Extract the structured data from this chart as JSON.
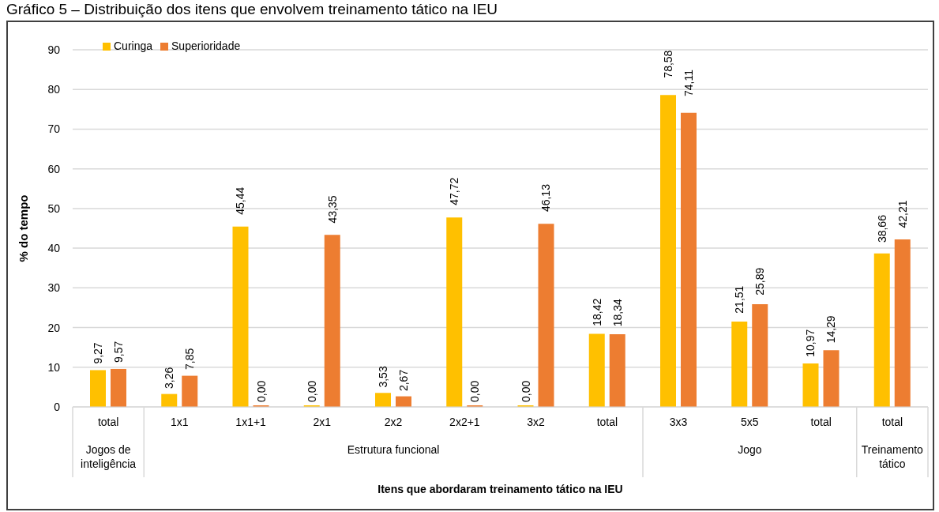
{
  "chart_data": {
    "type": "bar",
    "title": "Gráfico 5 – Distribuição dos itens que envolvem treinamento tático na IEU",
    "xlabel": "Itens que abordaram treinamento tático na IEU",
    "ylabel": "% do tempo",
    "categories": [
      "total",
      "1x1",
      "1x1+1",
      "2x1",
      "2x2",
      "2x2+1",
      "3x2",
      "total",
      "3x3",
      "5x5",
      "total",
      "total"
    ],
    "annotations": [
      "Jogos de inteligência",
      "Estrutura funcional",
      "Jogo",
      "Treinamento tático"
    ],
    "series": [
      {
        "name": "Curinga",
        "color": "#ffc000",
        "values": [
          9.27,
          3.26,
          45.44,
          0.0,
          3.53,
          47.72,
          0.0,
          18.42,
          78.58,
          21.51,
          10.97,
          38.66
        ],
        "value_labels": [
          "9,27",
          "3,26",
          "45,44",
          "0,00",
          "3,53",
          "47,72",
          "0,00",
          "18,42",
          "78,58",
          "21,51",
          "10,97",
          "38,66"
        ]
      },
      {
        "name": "Superioridade",
        "color": "#ed7d31",
        "values": [
          9.57,
          7.85,
          0.0,
          43.35,
          2.67,
          0.0,
          46.13,
          18.34,
          74.11,
          25.89,
          14.29,
          42.21
        ],
        "value_labels": [
          "9,57",
          "7,85",
          "0,00",
          "43,35",
          "2,67",
          "0,00",
          "46,13",
          "18,34",
          "74,11",
          "25,89",
          "14,29",
          "42,21"
        ]
      }
    ],
    "ylim": [
      0,
      90
    ],
    "yticks": [
      0,
      10,
      20,
      30,
      40,
      50,
      60,
      70,
      80,
      90
    ],
    "grid": "y",
    "legend": "top left"
  }
}
